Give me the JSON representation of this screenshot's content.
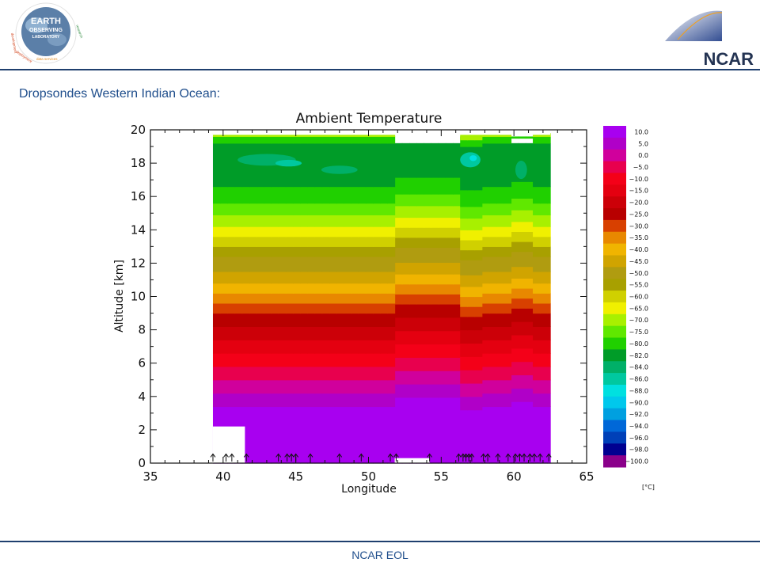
{
  "header": {
    "logo_left": {
      "name": "Earth Observing Laboratory logo",
      "line1": "EARTH",
      "line2": "OBSERVING",
      "line3": "LABORATORY",
      "arc_words": [
        "deployment",
        "data services",
        "development",
        "research"
      ]
    },
    "logo_right": {
      "text": "NCAR"
    }
  },
  "slide_title": "Dropsondes Western Indian Ocean:",
  "footer": {
    "text": "NCAR EOL"
  },
  "colors": {
    "rule": "#1f3f6e",
    "title_text": "#1f4e8c"
  },
  "chart_data": {
    "type": "contour",
    "title": "Ambient Temperature",
    "xlabel": "Longitude",
    "ylabel": "Altitude [km]",
    "xlim": [
      35,
      65
    ],
    "ylim": [
      0,
      20
    ],
    "x_ticks": [
      35,
      40,
      45,
      50,
      55,
      60,
      65
    ],
    "y_ticks": [
      0,
      2,
      4,
      6,
      8,
      10,
      12,
      14,
      16,
      18,
      20
    ],
    "data_extent_longitude": [
      39.3,
      62.5
    ],
    "sonde_longitudes": [
      39.3,
      40.2,
      40.6,
      41.6,
      43.8,
      44.4,
      44.7,
      45.0,
      46.0,
      48.0,
      49.5,
      51.5,
      51.9,
      54.2,
      56.2,
      56.5,
      56.7,
      56.9,
      57.1,
      57.9,
      58.2,
      58.9,
      59.6,
      60.1,
      60.4,
      60.7,
      61.1,
      61.4,
      61.8,
      62.4
    ],
    "colorbar": {
      "unit": "[°C]",
      "levels": [
        {
          "label": "10.0",
          "color": "#a800f0"
        },
        {
          "label": "5.0",
          "color": "#b000c8"
        },
        {
          "label": "0.0",
          "color": "#d0009c"
        },
        {
          "label": "−5.0",
          "color": "#e8004e"
        },
        {
          "label": "−10.0",
          "color": "#f40018"
        },
        {
          "label": "−15.0",
          "color": "#e40010"
        },
        {
          "label": "−20.0",
          "color": "#cc0008"
        },
        {
          "label": "−25.0",
          "color": "#b80000"
        },
        {
          "label": "−30.0",
          "color": "#d84000"
        },
        {
          "label": "−35.0",
          "color": "#e88800"
        },
        {
          "label": "−40.0",
          "color": "#f0b400"
        },
        {
          "label": "−45.0",
          "color": "#d0a400"
        },
        {
          "label": "−50.0",
          "color": "#b09c10"
        },
        {
          "label": "−55.0",
          "color": "#a8a000"
        },
        {
          "label": "−60.0",
          "color": "#d0d000"
        },
        {
          "label": "−65.0",
          "color": "#f0f000"
        },
        {
          "label": "−70.0",
          "color": "#a8f000"
        },
        {
          "label": "−75.0",
          "color": "#60e800"
        },
        {
          "label": "−80.0",
          "color": "#20d000"
        },
        {
          "label": "−82.0",
          "color": "#009c28"
        },
        {
          "label": "−84.0",
          "color": "#00b068"
        },
        {
          "label": "−86.0",
          "color": "#00c8a0"
        },
        {
          "label": "−88.0",
          "color": "#00e0e0"
        },
        {
          "label": "−90.0",
          "color": "#00c8ec"
        },
        {
          "label": "−92.0",
          "color": "#00a0e0"
        },
        {
          "label": "−94.0",
          "color": "#0068d8"
        },
        {
          "label": "−96.0",
          "color": "#0040b8"
        },
        {
          "label": "−98.0",
          "color": "#000090"
        },
        {
          "label": "−100.0",
          "color": "#8a008a"
        }
      ]
    }
  }
}
